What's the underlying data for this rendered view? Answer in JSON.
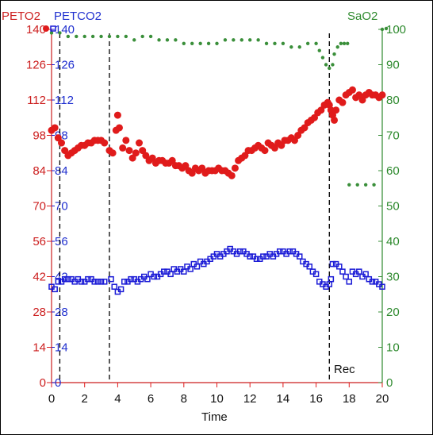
{
  "chart_data": {
    "type": "scatter",
    "xlabel": "Time",
    "xlim": [
      0,
      20
    ],
    "xticks": [
      "0",
      "2",
      "4",
      "6",
      "8",
      "10",
      "12",
      "14",
      "16",
      "18",
      "20"
    ],
    "left_axis": {
      "label_red": "PETO2",
      "label_blue": "PETCO2",
      "ylim": [
        0,
        140
      ],
      "ticks_red": [
        "0",
        "14",
        "28",
        "42",
        "56",
        "70",
        "84",
        "98",
        "112",
        "126",
        "140"
      ],
      "ticks_blue": [
        "0",
        "14",
        "28",
        "42",
        "56",
        "70",
        "84",
        "98",
        "112",
        "126",
        "140"
      ]
    },
    "right_axis": {
      "label": "SaO2",
      "ylim": [
        0,
        100
      ],
      "ticks": [
        "0",
        "10",
        "20",
        "30",
        "40",
        "50",
        "60",
        "70",
        "80",
        "90",
        "100"
      ]
    },
    "vertical_lines_x": [
      0.5,
      3.5,
      16.8
    ],
    "annotation": "Rec",
    "colors": {
      "PETO2": "#e01b1b",
      "PETCO2": "#1a1ad6",
      "SaO2": "#3a8f3a"
    },
    "series": [
      {
        "name": "PETO2",
        "axis": "left",
        "marker": "filled-circle",
        "points": [
          [
            0.0,
            100
          ],
          [
            0.2,
            101
          ],
          [
            0.4,
            97
          ],
          [
            0.6,
            95
          ],
          [
            0.8,
            92
          ],
          [
            1.0,
            90
          ],
          [
            1.2,
            91
          ],
          [
            1.4,
            92
          ],
          [
            1.6,
            93
          ],
          [
            1.8,
            94
          ],
          [
            2.0,
            94
          ],
          [
            2.2,
            95
          ],
          [
            2.4,
            95
          ],
          [
            2.6,
            96
          ],
          [
            2.8,
            96
          ],
          [
            3.0,
            96
          ],
          [
            3.2,
            95
          ],
          [
            3.5,
            92
          ],
          [
            3.7,
            91
          ],
          [
            3.9,
            100
          ],
          [
            4.0,
            106
          ],
          [
            4.1,
            101
          ],
          [
            4.3,
            93
          ],
          [
            4.5,
            96
          ],
          [
            4.7,
            92
          ],
          [
            4.9,
            89
          ],
          [
            5.1,
            91
          ],
          [
            5.3,
            95
          ],
          [
            5.5,
            92
          ],
          [
            5.7,
            90
          ],
          [
            5.9,
            88
          ],
          [
            6.1,
            89
          ],
          [
            6.3,
            87
          ],
          [
            6.5,
            88
          ],
          [
            6.7,
            88
          ],
          [
            6.9,
            87
          ],
          [
            7.1,
            87
          ],
          [
            7.3,
            88
          ],
          [
            7.5,
            86
          ],
          [
            7.7,
            86
          ],
          [
            7.9,
            85
          ],
          [
            8.1,
            86
          ],
          [
            8.3,
            84
          ],
          [
            8.5,
            83
          ],
          [
            8.7,
            85
          ],
          [
            8.9,
            84
          ],
          [
            9.1,
            85
          ],
          [
            9.3,
            83
          ],
          [
            9.5,
            84
          ],
          [
            9.7,
            84
          ],
          [
            9.9,
            84
          ],
          [
            10.1,
            85
          ],
          [
            10.3,
            84
          ],
          [
            10.5,
            84
          ],
          [
            10.7,
            83
          ],
          [
            10.9,
            82
          ],
          [
            11.1,
            85
          ],
          [
            11.3,
            88
          ],
          [
            11.5,
            89
          ],
          [
            11.7,
            90
          ],
          [
            11.9,
            92
          ],
          [
            12.1,
            92
          ],
          [
            12.3,
            93
          ],
          [
            12.5,
            94
          ],
          [
            12.7,
            93
          ],
          [
            12.9,
            92
          ],
          [
            13.1,
            95
          ],
          [
            13.3,
            94
          ],
          [
            13.5,
            93
          ],
          [
            13.7,
            95
          ],
          [
            13.9,
            94
          ],
          [
            14.1,
            96
          ],
          [
            14.3,
            96
          ],
          [
            14.5,
            97
          ],
          [
            14.7,
            96
          ],
          [
            14.9,
            98
          ],
          [
            15.1,
            100
          ],
          [
            15.3,
            101
          ],
          [
            15.5,
            103
          ],
          [
            15.7,
            104
          ],
          [
            15.9,
            105
          ],
          [
            16.1,
            107
          ],
          [
            16.3,
            108
          ],
          [
            16.5,
            110
          ],
          [
            16.7,
            111
          ],
          [
            16.8,
            110
          ],
          [
            16.9,
            108
          ],
          [
            17.0,
            106
          ],
          [
            17.1,
            104
          ],
          [
            17.2,
            108
          ],
          [
            17.4,
            112
          ],
          [
            17.6,
            111
          ],
          [
            17.8,
            114
          ],
          [
            18.0,
            115
          ],
          [
            18.2,
            116
          ],
          [
            18.4,
            113
          ],
          [
            18.6,
            114
          ],
          [
            18.8,
            112
          ],
          [
            19.0,
            114
          ],
          [
            19.2,
            115
          ],
          [
            19.4,
            114
          ],
          [
            19.6,
            114
          ],
          [
            19.8,
            113
          ],
          [
            20.0,
            114
          ]
        ]
      },
      {
        "name": "PETCO2",
        "axis": "left",
        "marker": "open-square",
        "points": [
          [
            0.0,
            38
          ],
          [
            0.2,
            37
          ],
          [
            0.4,
            40
          ],
          [
            0.6,
            40
          ],
          [
            0.8,
            41
          ],
          [
            1.0,
            41
          ],
          [
            1.2,
            41
          ],
          [
            1.4,
            40
          ],
          [
            1.6,
            41
          ],
          [
            1.8,
            40
          ],
          [
            2.0,
            40
          ],
          [
            2.2,
            41
          ],
          [
            2.4,
            41
          ],
          [
            2.6,
            40
          ],
          [
            2.8,
            40
          ],
          [
            3.0,
            40
          ],
          [
            3.2,
            40
          ],
          [
            3.6,
            41
          ],
          [
            3.8,
            38
          ],
          [
            4.0,
            36
          ],
          [
            4.2,
            37
          ],
          [
            4.4,
            40
          ],
          [
            4.6,
            40
          ],
          [
            4.8,
            41
          ],
          [
            5.0,
            41
          ],
          [
            5.2,
            40
          ],
          [
            5.4,
            41
          ],
          [
            5.6,
            42
          ],
          [
            5.8,
            41
          ],
          [
            6.0,
            43
          ],
          [
            6.2,
            42
          ],
          [
            6.4,
            42
          ],
          [
            6.6,
            43
          ],
          [
            6.8,
            44
          ],
          [
            7.0,
            44
          ],
          [
            7.2,
            43
          ],
          [
            7.4,
            45
          ],
          [
            7.6,
            44
          ],
          [
            7.8,
            45
          ],
          [
            8.0,
            44
          ],
          [
            8.2,
            46
          ],
          [
            8.4,
            45
          ],
          [
            8.6,
            47
          ],
          [
            8.8,
            46
          ],
          [
            9.0,
            48
          ],
          [
            9.2,
            47
          ],
          [
            9.4,
            48
          ],
          [
            9.6,
            49
          ],
          [
            9.8,
            50
          ],
          [
            10.0,
            51
          ],
          [
            10.2,
            50
          ],
          [
            10.4,
            51
          ],
          [
            10.6,
            52
          ],
          [
            10.8,
            53
          ],
          [
            11.0,
            52
          ],
          [
            11.2,
            51
          ],
          [
            11.4,
            52
          ],
          [
            11.6,
            52
          ],
          [
            11.8,
            51
          ],
          [
            12.0,
            50
          ],
          [
            12.2,
            50
          ],
          [
            12.4,
            49
          ],
          [
            12.6,
            49
          ],
          [
            12.8,
            50
          ],
          [
            13.0,
            50
          ],
          [
            13.2,
            51
          ],
          [
            13.4,
            50
          ],
          [
            13.6,
            51
          ],
          [
            13.8,
            52
          ],
          [
            14.0,
            52
          ],
          [
            14.2,
            51
          ],
          [
            14.4,
            52
          ],
          [
            14.6,
            52
          ],
          [
            14.8,
            51
          ],
          [
            15.0,
            50
          ],
          [
            15.2,
            48
          ],
          [
            15.4,
            47
          ],
          [
            15.6,
            46
          ],
          [
            15.8,
            44
          ],
          [
            16.0,
            43
          ],
          [
            16.2,
            40
          ],
          [
            16.4,
            39
          ],
          [
            16.6,
            38
          ],
          [
            16.8,
            39
          ],
          [
            16.9,
            41
          ],
          [
            17.0,
            47
          ],
          [
            17.2,
            47
          ],
          [
            17.4,
            46
          ],
          [
            17.6,
            44
          ],
          [
            17.8,
            42
          ],
          [
            18.0,
            40
          ],
          [
            18.2,
            44
          ],
          [
            18.4,
            43
          ],
          [
            18.6,
            44
          ],
          [
            18.8,
            42
          ],
          [
            19.0,
            43
          ],
          [
            19.2,
            41
          ],
          [
            19.4,
            40
          ],
          [
            19.6,
            40
          ],
          [
            19.8,
            39
          ],
          [
            20.0,
            38
          ]
        ]
      },
      {
        "name": "SaO2",
        "axis": "right",
        "marker": "small-dot",
        "points": [
          [
            0.0,
            99
          ],
          [
            0.5,
            99
          ],
          [
            1.0,
            98
          ],
          [
            1.5,
            98
          ],
          [
            2.0,
            98
          ],
          [
            2.5,
            98
          ],
          [
            3.0,
            98
          ],
          [
            3.5,
            98
          ],
          [
            4.0,
            98
          ],
          [
            4.5,
            98
          ],
          [
            5.0,
            97
          ],
          [
            5.5,
            98
          ],
          [
            6.0,
            98
          ],
          [
            6.5,
            97
          ],
          [
            7.0,
            97
          ],
          [
            7.5,
            97
          ],
          [
            8.0,
            96
          ],
          [
            8.5,
            96
          ],
          [
            9.0,
            96
          ],
          [
            9.5,
            96
          ],
          [
            10.0,
            96
          ],
          [
            10.5,
            97
          ],
          [
            11.0,
            97
          ],
          [
            11.5,
            97
          ],
          [
            12.0,
            97
          ],
          [
            12.5,
            97
          ],
          [
            13.0,
            96
          ],
          [
            13.5,
            96
          ],
          [
            14.0,
            96
          ],
          [
            14.5,
            95
          ],
          [
            15.0,
            95
          ],
          [
            15.5,
            96
          ],
          [
            16.0,
            96
          ],
          [
            16.2,
            94
          ],
          [
            16.4,
            92
          ],
          [
            16.6,
            90
          ],
          [
            16.8,
            89
          ],
          [
            17.0,
            90
          ],
          [
            17.1,
            93
          ],
          [
            17.3,
            95
          ],
          [
            17.5,
            96
          ],
          [
            17.7,
            96
          ],
          [
            17.9,
            96
          ],
          [
            18.0,
            56
          ],
          [
            18.5,
            56
          ],
          [
            19.0,
            56
          ],
          [
            19.5,
            56
          ],
          [
            20.0,
            100
          ]
        ]
      }
    ]
  }
}
